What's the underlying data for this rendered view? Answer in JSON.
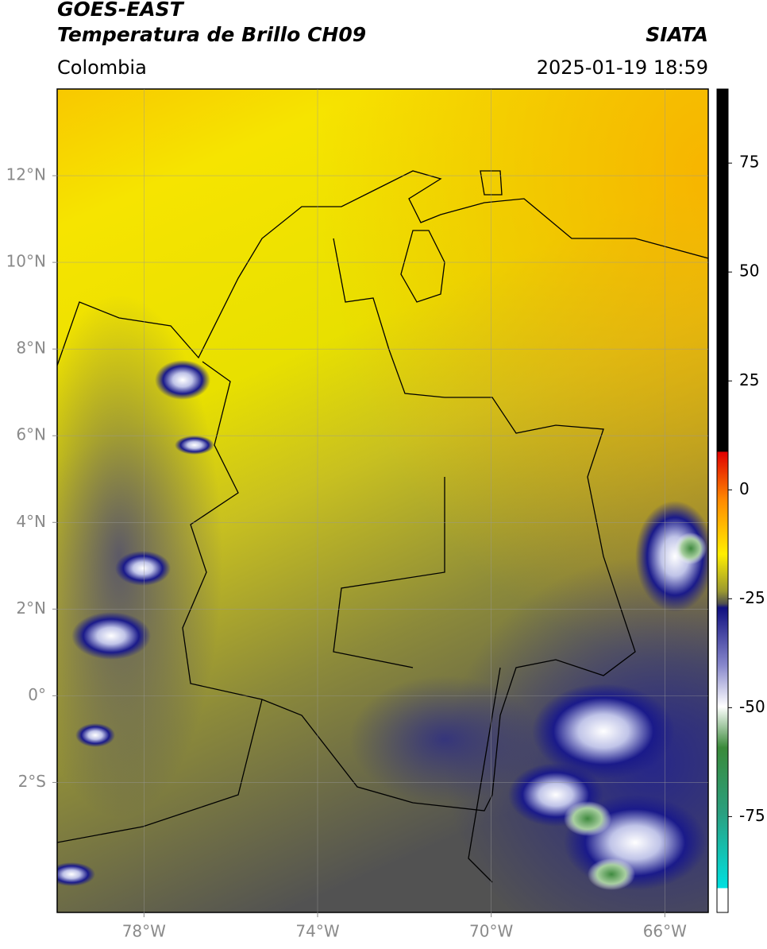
{
  "chart_data": {
    "type": "map",
    "title": "GOES-EAST",
    "subtitle": "Temperatura de Brillo CH09",
    "source": "SIATA",
    "region": "Colombia",
    "date": "2025-01-19 18:59",
    "xlim": [
      -80,
      -65
    ],
    "xticks": [
      {
        "value": -78,
        "label": "78°W"
      },
      {
        "value": -74,
        "label": "74°W"
      },
      {
        "value": -70,
        "label": "70°W"
      },
      {
        "value": -66,
        "label": "66°W"
      }
    ],
    "ylim": [
      -5,
      14
    ],
    "yticks": [
      {
        "value": 12,
        "label": "12°N"
      },
      {
        "value": 10,
        "label": "10°N"
      },
      {
        "value": 8,
        "label": "8°N"
      },
      {
        "value": 6,
        "label": "6°N"
      },
      {
        "value": 4,
        "label": "4°N"
      },
      {
        "value": 2,
        "label": "2°N"
      },
      {
        "value": 0,
        "label": "0°"
      },
      {
        "value": -2,
        "label": "2°S"
      }
    ],
    "grid": true,
    "colorbar": {
      "lim": [
        -97,
        92
      ],
      "ticks": [
        75,
        50,
        25,
        0,
        -25,
        -50,
        -75
      ]
    }
  }
}
